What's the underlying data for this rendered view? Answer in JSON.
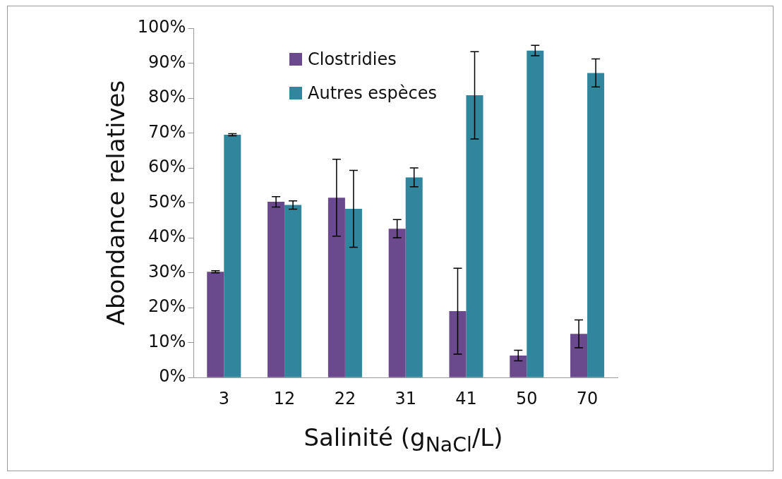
{
  "chart_data": {
    "type": "bar",
    "xlabel": "Salinité (g$_{NaCl}$/L)",
    "ylabel": "Abondance relatives",
    "categories": [
      "3",
      "12",
      "22",
      "31",
      "41",
      "50",
      "70"
    ],
    "series": [
      {
        "name": "Clostridies",
        "color": "#6a4a8c",
        "values": [
          30.3,
          50.3,
          51.5,
          42.6,
          19,
          6.3,
          12.5
        ],
        "errors": [
          0.3,
          1.5,
          11,
          2.6,
          12.3,
          1.5,
          4
        ]
      },
      {
        "name": "Autres espèces",
        "color": "#31859c",
        "values": [
          69.5,
          49.4,
          48.3,
          57.3,
          80.8,
          93.6,
          87.2
        ],
        "errors": [
          0.3,
          1.2,
          11,
          2.7,
          12.5,
          1.5,
          4
        ]
      }
    ],
    "ylim": [
      0,
      100
    ],
    "yticks": [
      {
        "value": 0,
        "label": "0%"
      },
      {
        "value": 10,
        "label": "10%"
      },
      {
        "value": 20,
        "label": "20%"
      },
      {
        "value": 30,
        "label": "30%"
      },
      {
        "value": 40,
        "label": "40%"
      },
      {
        "value": 50,
        "label": "50%"
      },
      {
        "value": 60,
        "label": "60%"
      },
      {
        "value": 70,
        "label": "70%"
      },
      {
        "value": 80,
        "label": "80%"
      },
      {
        "value": 90,
        "label": "90%"
      },
      {
        "value": 100,
        "label": "100%"
      }
    ],
    "grid": false,
    "legend": "top"
  }
}
